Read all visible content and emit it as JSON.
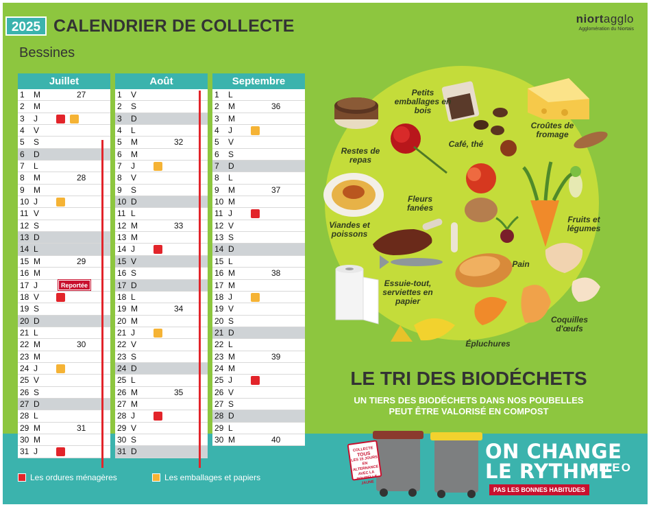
{
  "header": {
    "year": "2025",
    "title": "CALENDRIER DE COLLECTE",
    "town": "Bessines",
    "logo_brand_bold": "niort",
    "logo_brand_light": "agglo",
    "logo_sub": "Agglomération du Niortais"
  },
  "colors": {
    "background": "#8dc63f",
    "teal": "#3bb3ad",
    "household_waste": "#e2242a",
    "packaging": "#f5b335",
    "shaded_day": "#cfd3d6"
  },
  "months": [
    {
      "name": "Juillet",
      "days": [
        {
          "d": "1",
          "w": "M",
          "wk": "27"
        },
        {
          "d": "2",
          "w": "M"
        },
        {
          "d": "3",
          "w": "J",
          "red": true,
          "yellow": true
        },
        {
          "d": "4",
          "w": "V"
        },
        {
          "d": "5",
          "w": "S"
        },
        {
          "d": "6",
          "w": "D",
          "shade": true
        },
        {
          "d": "7",
          "w": "L"
        },
        {
          "d": "8",
          "w": "M",
          "wk": "28"
        },
        {
          "d": "9",
          "w": "M"
        },
        {
          "d": "10",
          "w": "J",
          "yellow": true
        },
        {
          "d": "11",
          "w": "V"
        },
        {
          "d": "12",
          "w": "S"
        },
        {
          "d": "13",
          "w": "D",
          "shade": true
        },
        {
          "d": "14",
          "w": "L",
          "shade": true
        },
        {
          "d": "15",
          "w": "M",
          "wk": "29"
        },
        {
          "d": "16",
          "w": "M"
        },
        {
          "d": "17",
          "w": "J",
          "note": "Reportée"
        },
        {
          "d": "18",
          "w": "V",
          "red": true
        },
        {
          "d": "19",
          "w": "S"
        },
        {
          "d": "20",
          "w": "D",
          "shade": true
        },
        {
          "d": "21",
          "w": "L"
        },
        {
          "d": "22",
          "w": "M",
          "wk": "30"
        },
        {
          "d": "23",
          "w": "M"
        },
        {
          "d": "24",
          "w": "J",
          "yellow": true
        },
        {
          "d": "25",
          "w": "V"
        },
        {
          "d": "26",
          "w": "S"
        },
        {
          "d": "27",
          "w": "D",
          "shade": true
        },
        {
          "d": "28",
          "w": "L"
        },
        {
          "d": "29",
          "w": "M",
          "wk": "31"
        },
        {
          "d": "30",
          "w": "M"
        },
        {
          "d": "31",
          "w": "J",
          "red": true
        }
      ]
    },
    {
      "name": "Août",
      "days": [
        {
          "d": "1",
          "w": "V"
        },
        {
          "d": "2",
          "w": "S"
        },
        {
          "d": "3",
          "w": "D",
          "shade": true
        },
        {
          "d": "4",
          "w": "L"
        },
        {
          "d": "5",
          "w": "M",
          "wk": "32"
        },
        {
          "d": "6",
          "w": "M"
        },
        {
          "d": "7",
          "w": "J",
          "yellow": true
        },
        {
          "d": "8",
          "w": "V"
        },
        {
          "d": "9",
          "w": "S"
        },
        {
          "d": "10",
          "w": "D",
          "shade": true
        },
        {
          "d": "11",
          "w": "L"
        },
        {
          "d": "12",
          "w": "M",
          "wk": "33"
        },
        {
          "d": "13",
          "w": "M"
        },
        {
          "d": "14",
          "w": "J",
          "red": true
        },
        {
          "d": "15",
          "w": "V",
          "shade": true
        },
        {
          "d": "16",
          "w": "S"
        },
        {
          "d": "17",
          "w": "D",
          "shade": true
        },
        {
          "d": "18",
          "w": "L"
        },
        {
          "d": "19",
          "w": "M",
          "wk": "34"
        },
        {
          "d": "20",
          "w": "M"
        },
        {
          "d": "21",
          "w": "J",
          "yellow": true
        },
        {
          "d": "22",
          "w": "V"
        },
        {
          "d": "23",
          "w": "S"
        },
        {
          "d": "24",
          "w": "D",
          "shade": true
        },
        {
          "d": "25",
          "w": "L"
        },
        {
          "d": "26",
          "w": "M",
          "wk": "35"
        },
        {
          "d": "27",
          "w": "M"
        },
        {
          "d": "28",
          "w": "J",
          "red": true
        },
        {
          "d": "29",
          "w": "V"
        },
        {
          "d": "30",
          "w": "S"
        },
        {
          "d": "31",
          "w": "D",
          "shade": true
        }
      ]
    },
    {
      "name": "Septembre",
      "days": [
        {
          "d": "1",
          "w": "L"
        },
        {
          "d": "2",
          "w": "M",
          "wk": "36"
        },
        {
          "d": "3",
          "w": "M"
        },
        {
          "d": "4",
          "w": "J",
          "yellow": true
        },
        {
          "d": "5",
          "w": "V"
        },
        {
          "d": "6",
          "w": "S"
        },
        {
          "d": "7",
          "w": "D",
          "shade": true
        },
        {
          "d": "8",
          "w": "L"
        },
        {
          "d": "9",
          "w": "M",
          "wk": "37"
        },
        {
          "d": "10",
          "w": "M"
        },
        {
          "d": "11",
          "w": "J",
          "red": true
        },
        {
          "d": "12",
          "w": "V"
        },
        {
          "d": "13",
          "w": "S"
        },
        {
          "d": "14",
          "w": "D",
          "shade": true
        },
        {
          "d": "15",
          "w": "L"
        },
        {
          "d": "16",
          "w": "M",
          "wk": "38"
        },
        {
          "d": "17",
          "w": "M"
        },
        {
          "d": "18",
          "w": "J",
          "yellow": true
        },
        {
          "d": "19",
          "w": "V"
        },
        {
          "d": "20",
          "w": "S"
        },
        {
          "d": "21",
          "w": "D",
          "shade": true
        },
        {
          "d": "22",
          "w": "L"
        },
        {
          "d": "23",
          "w": "M",
          "wk": "39"
        },
        {
          "d": "24",
          "w": "M"
        },
        {
          "d": "25",
          "w": "J",
          "red": true
        },
        {
          "d": "26",
          "w": "V"
        },
        {
          "d": "27",
          "w": "S"
        },
        {
          "d": "28",
          "w": "D",
          "shade": true
        },
        {
          "d": "29",
          "w": "L"
        },
        {
          "d": "30",
          "w": "M",
          "wk": "40"
        }
      ]
    }
  ],
  "legend": {
    "household_waste": "Les ordures ménagères",
    "packaging": "Les emballages et papiers"
  },
  "biowaste": {
    "labels": {
      "wood_packaging": "Petits emballages en bois",
      "coffee_tea": "Café, thé",
      "cheese_rinds": "Croûtes de fromage",
      "leftovers": "Restes de repas",
      "wilted_flowers": "Fleurs fanées",
      "fruits_veg": "Fruits et légumes",
      "meat_fish": "Viandes et poissons",
      "bread": "Pain",
      "paper_towels": "Essuie-tout, serviettes en papier",
      "eggshells": "Coquilles d'œufs",
      "peelings": "Épluchures"
    },
    "title": "LE TRI DES BIODÉCHETS",
    "subtitle_line1": "UN TIERS DES BIODÉCHETS DANS NOS POUBELLES",
    "subtitle_line2": "PEUT ÊTRE VALORISÉ EN COMPOST"
  },
  "campaign": {
    "sign_line1": "COLLECTE",
    "sign_line2": "TOUS",
    "sign_line3": "LES 15 JOURS",
    "sign_line4": "EN ALTERNANCE",
    "sign_line5": "AVEC LA",
    "sign_line6": "POUBELLE JAUNE",
    "line1": "ON CHANGE",
    "line2": "LE RYTHME",
    "tag": "PAS LES BONNES HABITUDES",
    "partner": "CITEO"
  }
}
